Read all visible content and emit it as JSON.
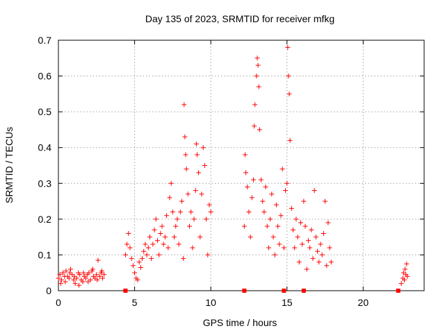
{
  "chart_data": {
    "type": "scatter",
    "title": "Day 135 of 2023, SRMTID for receiver mfkg",
    "xlabel": "GPS time / hours",
    "ylabel": "SRMTID / TECUs",
    "xlim": [
      0,
      24
    ],
    "ylim": [
      0,
      0.7
    ],
    "x_ticks": [
      0,
      5,
      10,
      15,
      20
    ],
    "y_ticks": [
      0,
      0.1,
      0.2,
      0.3,
      0.4,
      0.5,
      0.6,
      0.7
    ],
    "x_tick_labels": [
      "0",
      "5",
      "10",
      "15",
      "20"
    ],
    "y_tick_labels": [
      "0",
      "0.1",
      "0.2",
      "0.3",
      "0.4",
      "0.5",
      "0.6",
      "0.7"
    ],
    "grid": true,
    "marker": "plus",
    "series_color": "#ff0000",
    "series": [
      {
        "name": "SRMTID",
        "points": [
          [
            0.0,
            0.035
          ],
          [
            0.1,
            0.045
          ],
          [
            0.2,
            0.03
          ],
          [
            0.3,
            0.05
          ],
          [
            0.4,
            0.04
          ],
          [
            0.5,
            0.055
          ],
          [
            0.6,
            0.04
          ],
          [
            0.7,
            0.035
          ],
          [
            0.8,
            0.06
          ],
          [
            0.9,
            0.045
          ],
          [
            1.0,
            0.03
          ],
          [
            1.1,
            0.02
          ],
          [
            1.2,
            0.035
          ],
          [
            1.3,
            0.05
          ],
          [
            1.4,
            0.045
          ],
          [
            1.5,
            0.03
          ],
          [
            1.6,
            0.025
          ],
          [
            1.7,
            0.04
          ],
          [
            1.8,
            0.035
          ],
          [
            1.9,
            0.045
          ],
          [
            2.0,
            0.05
          ],
          [
            2.1,
            0.03
          ],
          [
            2.2,
            0.055
          ],
          [
            2.3,
            0.04
          ],
          [
            2.4,
            0.035
          ],
          [
            2.5,
            0.045
          ],
          [
            2.6,
            0.085
          ],
          [
            2.7,
            0.04
          ],
          [
            2.8,
            0.05
          ],
          [
            2.9,
            0.035
          ],
          [
            3.0,
            0.045
          ],
          [
            0.15,
            0.02
          ],
          [
            0.45,
            0.025
          ],
          [
            0.75,
            0.05
          ],
          [
            1.05,
            0.04
          ],
          [
            1.35,
            0.015
          ],
          [
            1.65,
            0.05
          ],
          [
            1.95,
            0.025
          ],
          [
            2.25,
            0.06
          ],
          [
            2.55,
            0.03
          ],
          [
            2.85,
            0.055
          ],
          [
            4.4,
            0.1
          ],
          [
            4.5,
            0.13
          ],
          [
            4.6,
            0.16
          ],
          [
            4.7,
            0.12
          ],
          [
            4.8,
            0.09
          ],
          [
            4.9,
            0.07
          ],
          [
            5.0,
            0.05
          ],
          [
            5.1,
            0.035
          ],
          [
            5.2,
            0.03
          ],
          [
            5.3,
            0.08
          ],
          [
            5.4,
            0.065
          ],
          [
            5.5,
            0.09
          ],
          [
            5.6,
            0.11
          ],
          [
            5.7,
            0.13
          ],
          [
            5.8,
            0.1
          ],
          [
            5.9,
            0.12
          ],
          [
            6.0,
            0.15
          ],
          [
            6.1,
            0.09
          ],
          [
            6.2,
            0.13
          ],
          [
            6.3,
            0.17
          ],
          [
            6.4,
            0.2
          ],
          [
            6.5,
            0.14
          ],
          [
            6.6,
            0.1
          ],
          [
            6.7,
            0.16
          ],
          [
            6.8,
            0.18
          ],
          [
            6.9,
            0.13
          ],
          [
            7.0,
            0.15
          ],
          [
            7.1,
            0.21
          ],
          [
            7.2,
            0.12
          ],
          [
            7.3,
            0.26
          ],
          [
            7.4,
            0.3
          ],
          [
            7.5,
            0.22
          ],
          [
            7.6,
            0.15
          ],
          [
            7.7,
            0.18
          ],
          [
            7.8,
            0.2
          ],
          [
            7.9,
            0.13
          ],
          [
            8.0,
            0.22
          ],
          [
            8.1,
            0.25
          ],
          [
            8.2,
            0.09
          ],
          [
            8.25,
            0.52
          ],
          [
            8.3,
            0.43
          ],
          [
            8.35,
            0.38
          ],
          [
            8.4,
            0.34
          ],
          [
            8.5,
            0.27
          ],
          [
            8.6,
            0.18
          ],
          [
            8.7,
            0.22
          ],
          [
            8.8,
            0.12
          ],
          [
            8.9,
            0.2
          ],
          [
            9.0,
            0.28
          ],
          [
            9.05,
            0.41
          ],
          [
            9.1,
            0.38
          ],
          [
            9.2,
            0.33
          ],
          [
            9.3,
            0.15
          ],
          [
            9.4,
            0.27
          ],
          [
            9.5,
            0.4
          ],
          [
            9.6,
            0.35
          ],
          [
            9.7,
            0.2
          ],
          [
            9.8,
            0.1
          ],
          [
            9.9,
            0.24
          ],
          [
            10.0,
            0.22
          ],
          [
            12.2,
            0.18
          ],
          [
            12.25,
            0.38
          ],
          [
            12.3,
            0.33
          ],
          [
            12.4,
            0.29
          ],
          [
            12.5,
            0.22
          ],
          [
            12.6,
            0.15
          ],
          [
            12.7,
            0.26
          ],
          [
            12.8,
            0.31
          ],
          [
            12.85,
            0.46
          ],
          [
            12.9,
            0.52
          ],
          [
            13.0,
            0.6
          ],
          [
            13.05,
            0.65
          ],
          [
            13.1,
            0.63
          ],
          [
            13.15,
            0.57
          ],
          [
            13.2,
            0.45
          ],
          [
            13.3,
            0.31
          ],
          [
            13.4,
            0.25
          ],
          [
            13.5,
            0.22
          ],
          [
            13.6,
            0.29
          ],
          [
            13.7,
            0.18
          ],
          [
            13.8,
            0.12
          ],
          [
            13.9,
            0.2
          ],
          [
            14.0,
            0.27
          ],
          [
            14.1,
            0.15
          ],
          [
            14.2,
            0.1
          ],
          [
            14.3,
            0.24
          ],
          [
            14.4,
            0.18
          ],
          [
            14.5,
            0.13
          ],
          [
            14.6,
            0.21
          ],
          [
            14.7,
            0.34
          ],
          [
            14.8,
            0.12
          ],
          [
            14.9,
            0.28
          ],
          [
            15.0,
            0.3
          ],
          [
            15.05,
            0.68
          ],
          [
            15.1,
            0.6
          ],
          [
            15.15,
            0.55
          ],
          [
            15.2,
            0.42
          ],
          [
            15.3,
            0.23
          ],
          [
            15.4,
            0.17
          ],
          [
            15.5,
            0.12
          ],
          [
            15.6,
            0.2
          ],
          [
            15.7,
            0.15
          ],
          [
            15.8,
            0.08
          ],
          [
            15.9,
            0.19
          ],
          [
            16.0,
            0.13
          ],
          [
            16.1,
            0.25
          ],
          [
            16.2,
            0.18
          ],
          [
            16.3,
            0.06
          ],
          [
            16.4,
            0.14
          ],
          [
            16.5,
            0.12
          ],
          [
            16.6,
            0.17
          ],
          [
            16.7,
            0.09
          ],
          [
            16.8,
            0.28
          ],
          [
            16.9,
            0.15
          ],
          [
            17.0,
            0.11
          ],
          [
            17.1,
            0.08
          ],
          [
            17.2,
            0.13
          ],
          [
            17.3,
            0.1
          ],
          [
            17.4,
            0.16
          ],
          [
            17.5,
            0.25
          ],
          [
            17.6,
            0.07
          ],
          [
            17.7,
            0.19
          ],
          [
            17.8,
            0.12
          ],
          [
            17.9,
            0.08
          ],
          [
            22.5,
            0.02
          ],
          [
            22.6,
            0.035
          ],
          [
            22.65,
            0.05
          ],
          [
            22.7,
            0.03
          ],
          [
            22.75,
            0.06
          ],
          [
            22.8,
            0.045
          ],
          [
            22.85,
            0.075
          ],
          [
            22.9,
            0.04
          ]
        ]
      }
    ],
    "gap_markers": {
      "shape": "square",
      "y": 0,
      "x": [
        4.4,
        12.2,
        14.8,
        16.1,
        22.3
      ]
    }
  }
}
